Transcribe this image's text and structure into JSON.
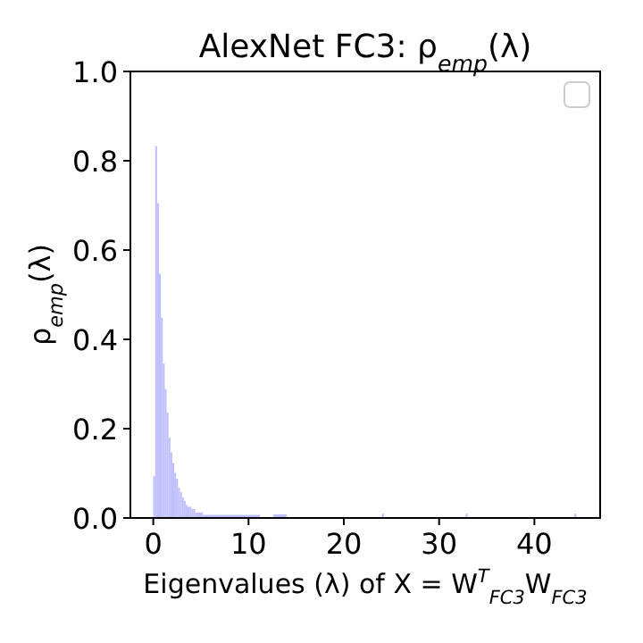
{
  "chart_data": {
    "type": "histogram",
    "title": "AlexNet FC3:  ρ$_{emp}$(λ)",
    "xlabel": "Eigenvalues (λ) of X = W$^{T}$$_{FC3}$W$_{FC3}$",
    "ylabel": "ρ$_{emp}$(λ)",
    "color": "#c0c0ff",
    "xlim": [
      -2.4,
      46.9
    ],
    "xticks": [
      0,
      10,
      20,
      30,
      40
    ],
    "ylim": [
      0,
      1
    ],
    "yticks": [
      {
        "value": 0,
        "label": "0.0"
      },
      {
        "value": 0.2,
        "label": "0.2"
      },
      {
        "value": 0.4,
        "label": "0.4"
      },
      {
        "value": 0.6,
        "label": "0.6"
      },
      {
        "value": 0.8,
        "label": "0.8"
      },
      {
        "value": 1,
        "label": "1.0"
      }
    ],
    "bins": [
      0,
      0.2,
      0.4,
      0.6,
      0.8,
      1,
      1.2,
      1.4,
      1.6,
      1.8,
      2,
      2.2,
      2.4,
      2.6,
      2.8,
      3,
      3.2,
      3.4,
      3.6,
      3.8,
      4,
      4.2,
      4.4,
      5.2,
      11.2,
      12.6,
      14,
      24,
      24.2,
      32.8,
      33,
      44.2,
      44.4
    ],
    "values": [
      0.094,
      0.833,
      0.705,
      0.547,
      0.449,
      0.346,
      0.289,
      0.236,
      0.18,
      0.147,
      0.123,
      0.101,
      0.088,
      0.068,
      0.058,
      0.046,
      0.038,
      0.029,
      0.025,
      0.025,
      0.02,
      0.02,
      0.012,
      0.007,
      0,
      0.008,
      0,
      0.01,
      0,
      0.01,
      0,
      0.01
    ]
  }
}
